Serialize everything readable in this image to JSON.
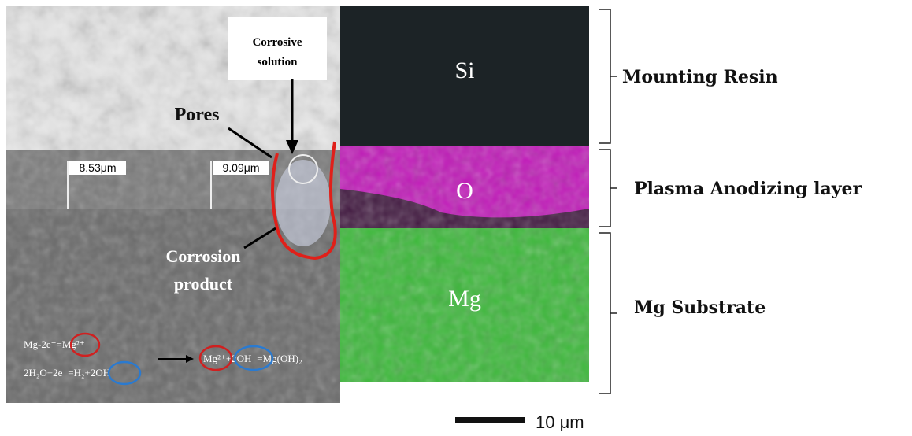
{
  "micrograph": {
    "annotations": {
      "corrosive_solution": [
        "Corrosive",
        "solution"
      ],
      "pores": "Pores",
      "thickness_left": "8.53μm",
      "thickness_right": "9.09μm",
      "corrosion_product": [
        "Corrosion",
        "product"
      ],
      "equations": [
        "Mg-2e⁻=Mg²⁺",
        "2H₂O+2e⁻=H₂+2OH⁻",
        "Mg²⁺+2OH⁻=Mg(OH)₂"
      ]
    }
  },
  "eds_maps": [
    {
      "element": "Si"
    },
    {
      "element": "O"
    },
    {
      "element": "Mg"
    }
  ],
  "layers": [
    "Mounting Resin",
    "Plasma Anodizing layer",
    "Mg Substrate"
  ],
  "scale_bar": {
    "label": "10 μm"
  }
}
